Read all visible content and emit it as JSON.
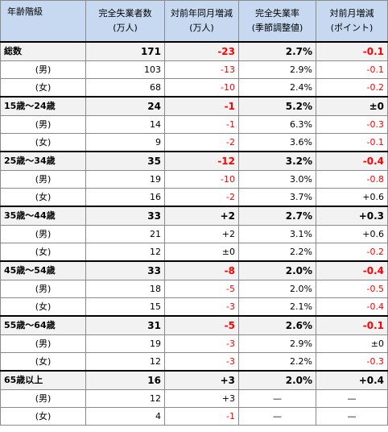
{
  "header": {
    "age": "年齢階級",
    "unemployed_line1": "完全失業者数",
    "unemployed_line2": "(万人)",
    "yoy_line1": "対前年同月増減",
    "yoy_line2": "(万人)",
    "rate_line1": "完全失業率",
    "rate_line2": "(季節調整値)",
    "mom_line1": "対前月増減",
    "mom_line2": "(ポイント)"
  },
  "rows": [
    {
      "label": "総数",
      "kind": "main",
      "count": "171",
      "yoy": "-23",
      "yoy_neg": true,
      "rate": "2.7%",
      "mom": "-0.1",
      "mom_neg": true
    },
    {
      "label": "(男)",
      "kind": "sub",
      "count": "103",
      "yoy": "-13",
      "yoy_neg": true,
      "rate": "2.9%",
      "mom": "-0.1",
      "mom_neg": true
    },
    {
      "label": "(女)",
      "kind": "sub",
      "count": "68",
      "yoy": "-10",
      "yoy_neg": true,
      "rate": "2.4%",
      "mom": "-0.2",
      "mom_neg": true
    },
    {
      "label": "15歳～24歳",
      "kind": "main",
      "count": "24",
      "yoy": "-1",
      "yoy_neg": true,
      "rate": "5.2%",
      "mom": "±0",
      "mom_neg": false
    },
    {
      "label": "(男)",
      "kind": "sub",
      "count": "14",
      "yoy": "-1",
      "yoy_neg": true,
      "rate": "6.3%",
      "mom": "-0.3",
      "mom_neg": true
    },
    {
      "label": "(女)",
      "kind": "sub",
      "count": "9",
      "yoy": "-2",
      "yoy_neg": true,
      "rate": "3.6%",
      "mom": "-0.1",
      "mom_neg": true
    },
    {
      "label": "25歳～34歳",
      "kind": "main",
      "count": "35",
      "yoy": "-12",
      "yoy_neg": true,
      "rate": "3.2%",
      "mom": "-0.4",
      "mom_neg": true
    },
    {
      "label": "(男)",
      "kind": "sub",
      "count": "19",
      "yoy": "-10",
      "yoy_neg": true,
      "rate": "3.0%",
      "mom": "-0.8",
      "mom_neg": true
    },
    {
      "label": "(女)",
      "kind": "sub",
      "count": "16",
      "yoy": "-2",
      "yoy_neg": true,
      "rate": "3.7%",
      "mom": "+0.6",
      "mom_neg": false
    },
    {
      "label": "35歳～44歳",
      "kind": "main",
      "count": "33",
      "yoy": "+2",
      "yoy_neg": false,
      "rate": "2.7%",
      "mom": "+0.3",
      "mom_neg": false
    },
    {
      "label": "(男)",
      "kind": "sub",
      "count": "21",
      "yoy": "+2",
      "yoy_neg": false,
      "rate": "3.1%",
      "mom": "+0.6",
      "mom_neg": false
    },
    {
      "label": "(女)",
      "kind": "sub",
      "count": "12",
      "yoy": "±0",
      "yoy_neg": false,
      "rate": "2.2%",
      "mom": "-0.2",
      "mom_neg": true
    },
    {
      "label": "45歳～54歳",
      "kind": "main",
      "count": "33",
      "yoy": "-8",
      "yoy_neg": true,
      "rate": "2.0%",
      "mom": "-0.4",
      "mom_neg": true
    },
    {
      "label": "(男)",
      "kind": "sub",
      "count": "18",
      "yoy": "-5",
      "yoy_neg": true,
      "rate": "2.0%",
      "mom": "-0.5",
      "mom_neg": true
    },
    {
      "label": "(女)",
      "kind": "sub",
      "count": "15",
      "yoy": "-3",
      "yoy_neg": true,
      "rate": "2.1%",
      "mom": "-0.4",
      "mom_neg": true
    },
    {
      "label": "55歳～64歳",
      "kind": "main",
      "count": "31",
      "yoy": "-5",
      "yoy_neg": true,
      "rate": "2.6%",
      "mom": "-0.1",
      "mom_neg": true
    },
    {
      "label": "(男)",
      "kind": "sub",
      "count": "19",
      "yoy": "-3",
      "yoy_neg": true,
      "rate": "2.9%",
      "mom": "±0",
      "mom_neg": false
    },
    {
      "label": "(女)",
      "kind": "sub",
      "count": "12",
      "yoy": "-3",
      "yoy_neg": true,
      "rate": "2.2%",
      "mom": "-0.3",
      "mom_neg": true
    },
    {
      "label": "65歳以上",
      "kind": "main",
      "count": "16",
      "yoy": "+3",
      "yoy_neg": false,
      "rate": "2.0%",
      "mom": "+0.4",
      "mom_neg": false
    },
    {
      "label": "(男)",
      "kind": "sub",
      "count": "12",
      "yoy": "+3",
      "yoy_neg": false,
      "rate": "—",
      "mom": "—",
      "mom_neg": false
    },
    {
      "label": "(女)",
      "kind": "sub",
      "count": "4",
      "yoy": "-1",
      "yoy_neg": true,
      "rate": "—",
      "mom": "—",
      "mom_neg": false
    }
  ]
}
